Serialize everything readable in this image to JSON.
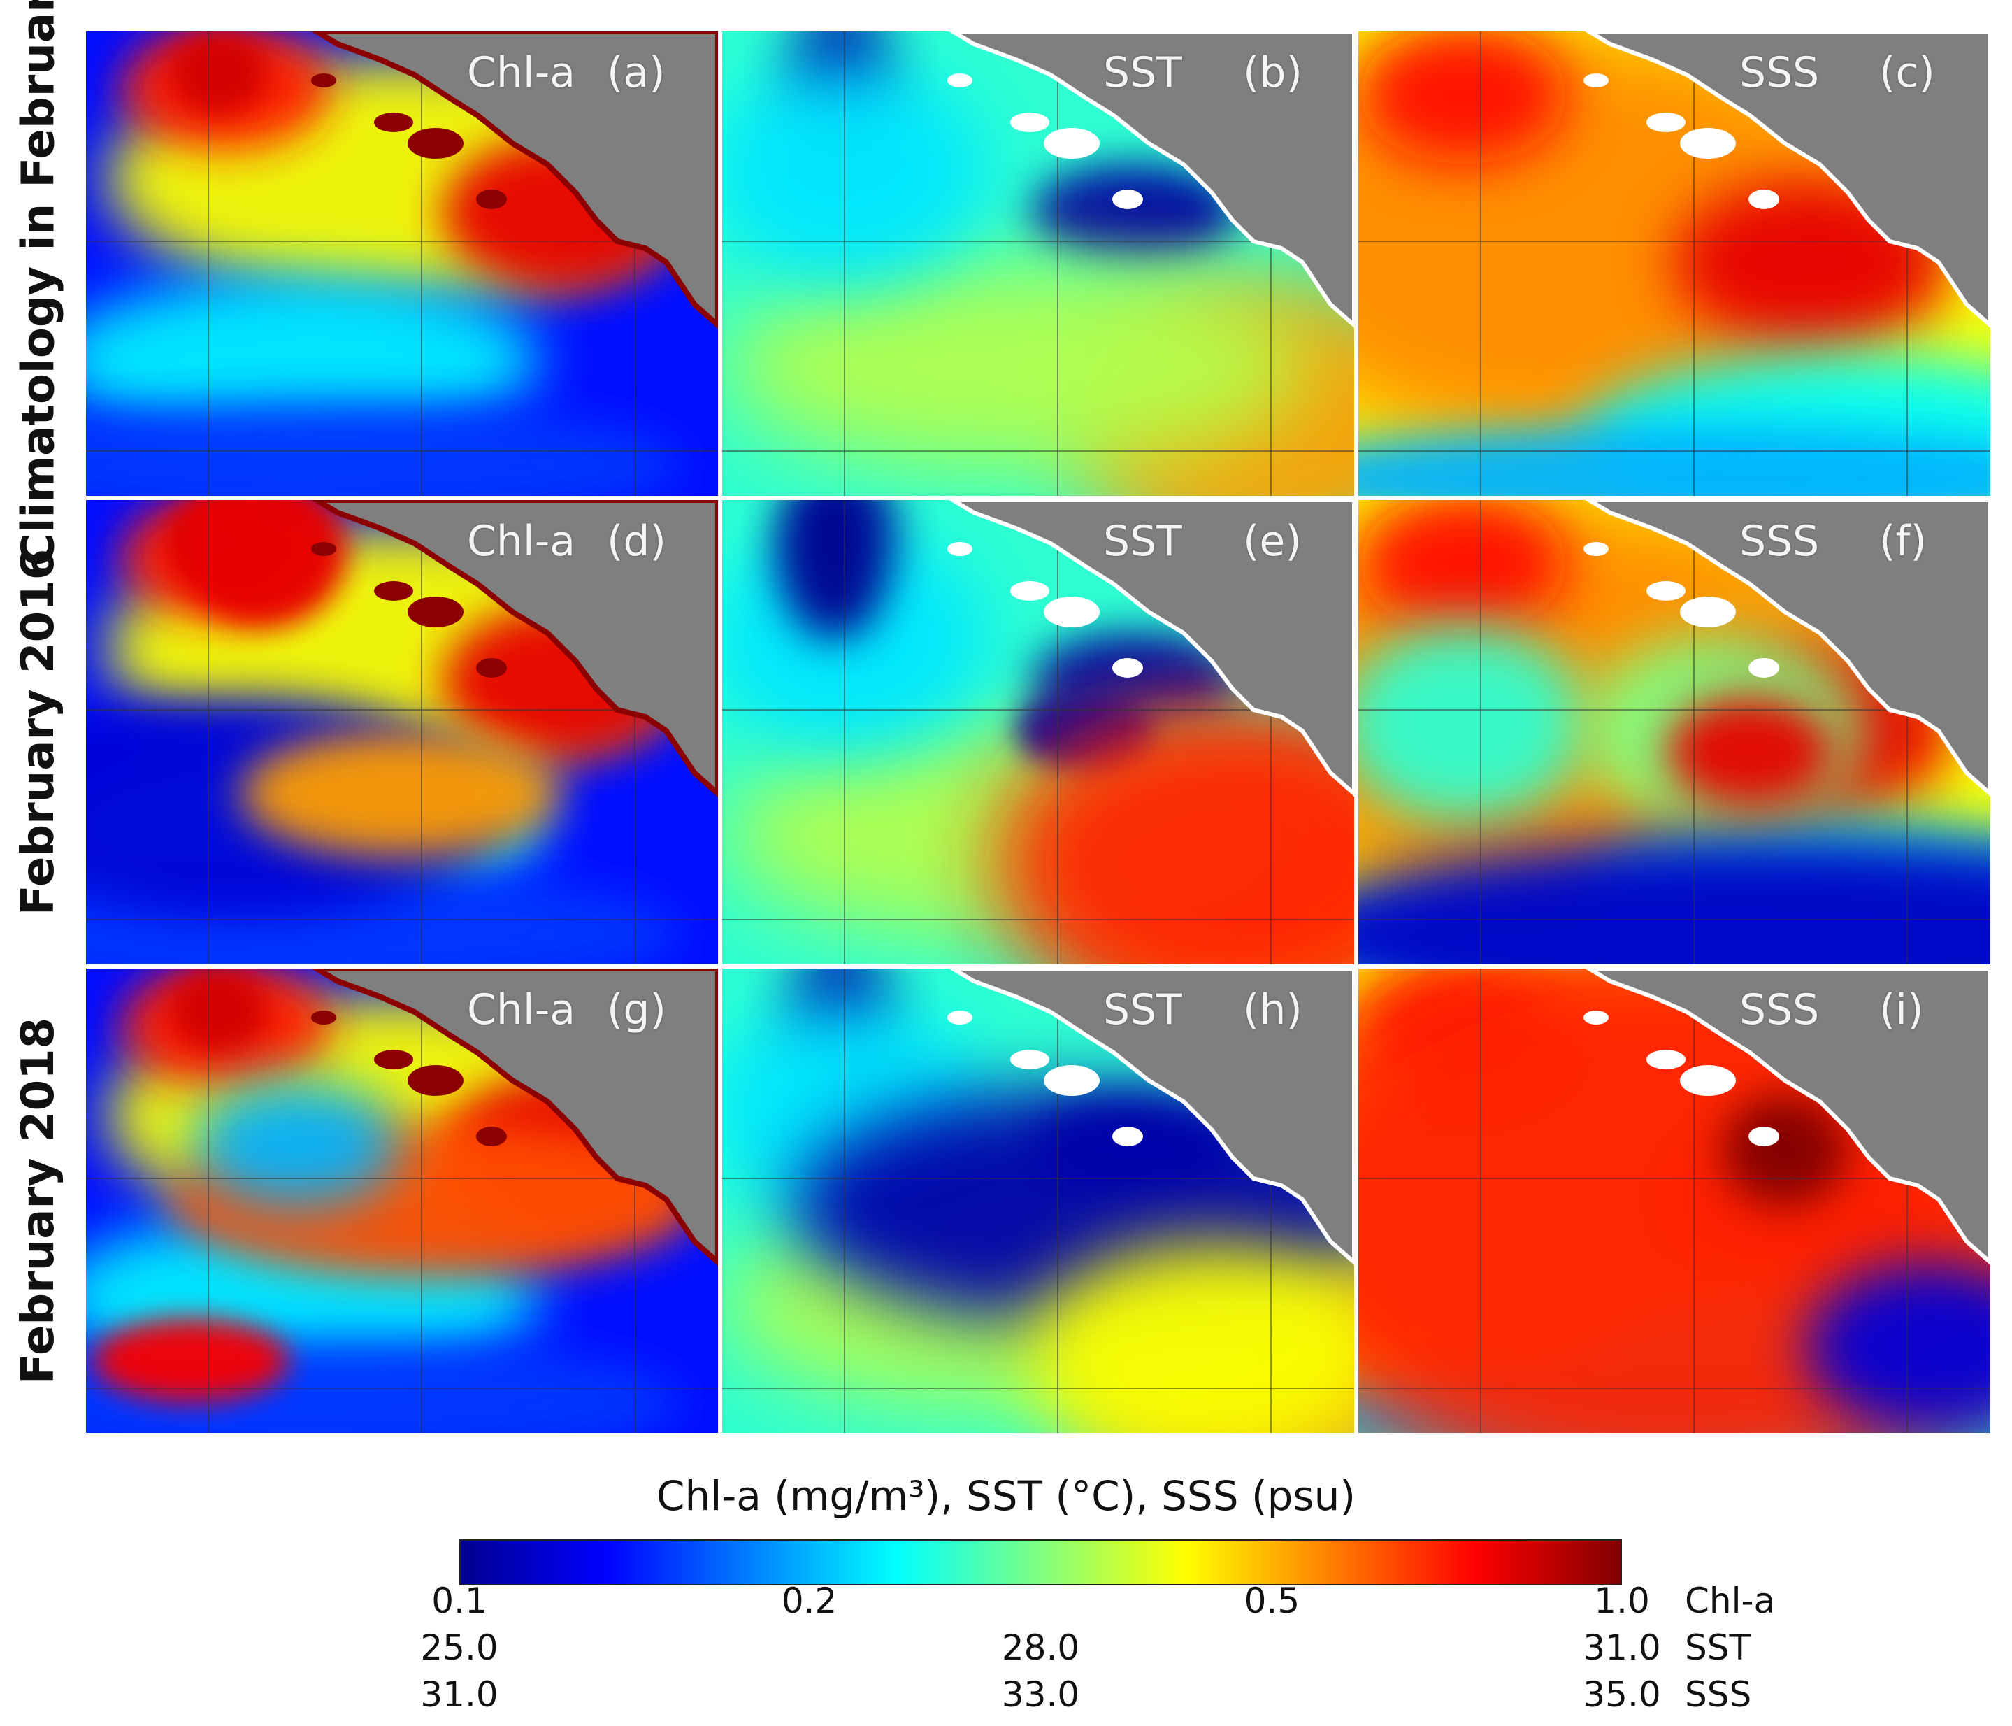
{
  "rows": [
    {
      "label": "Climatology in February"
    },
    {
      "label": "February 2016"
    },
    {
      "label": "February 2018"
    }
  ],
  "panels": [
    {
      "var": "Chl-a",
      "letter": "(a)",
      "kind": "chl"
    },
    {
      "var": "SST",
      "letter": "(b)",
      "kind": "sst"
    },
    {
      "var": "SSS",
      "letter": "(c)",
      "kind": "sss"
    },
    {
      "var": "Chl-a",
      "letter": "(d)",
      "kind": "chl"
    },
    {
      "var": "SST",
      "letter": "(e)",
      "kind": "sst"
    },
    {
      "var": "SSS",
      "letter": "(f)",
      "kind": "sss"
    },
    {
      "var": "Chl-a",
      "letter": "(g)",
      "kind": "chl"
    },
    {
      "var": "SST",
      "letter": "(h)",
      "kind": "sst"
    },
    {
      "var": "SSS",
      "letter": "(i)",
      "kind": "sss"
    }
  ],
  "colorbar": {
    "caption": "Chl-a (mg/m³), SST (°C), SSS (psu)",
    "colormap": "jet",
    "stops": [
      "#00008f",
      "#0000ff",
      "#0080ff",
      "#00ffff",
      "#80ff80",
      "#ffff00",
      "#ff8000",
      "#ff0000",
      "#800000"
    ],
    "scales": [
      {
        "name": "Chl-a",
        "ticks": [
          "0.1",
          "0.2",
          "0.5",
          "1.0"
        ],
        "values": [
          0.1,
          0.2,
          0.5,
          1.0
        ],
        "log": true
      },
      {
        "name": "SST",
        "ticks": [
          "25.0",
          "28.0",
          "31.0"
        ],
        "values": [
          25.0,
          28.0,
          31.0
        ],
        "log": false
      },
      {
        "name": "SSS",
        "ticks": [
          "31.0",
          "33.0",
          "35.0"
        ],
        "values": [
          31.0,
          33.0,
          35.0
        ],
        "log": false
      }
    ]
  },
  "colors": {
    "land": "#7f7f7f",
    "island": "#ffffff",
    "gridline": "#333333"
  }
}
